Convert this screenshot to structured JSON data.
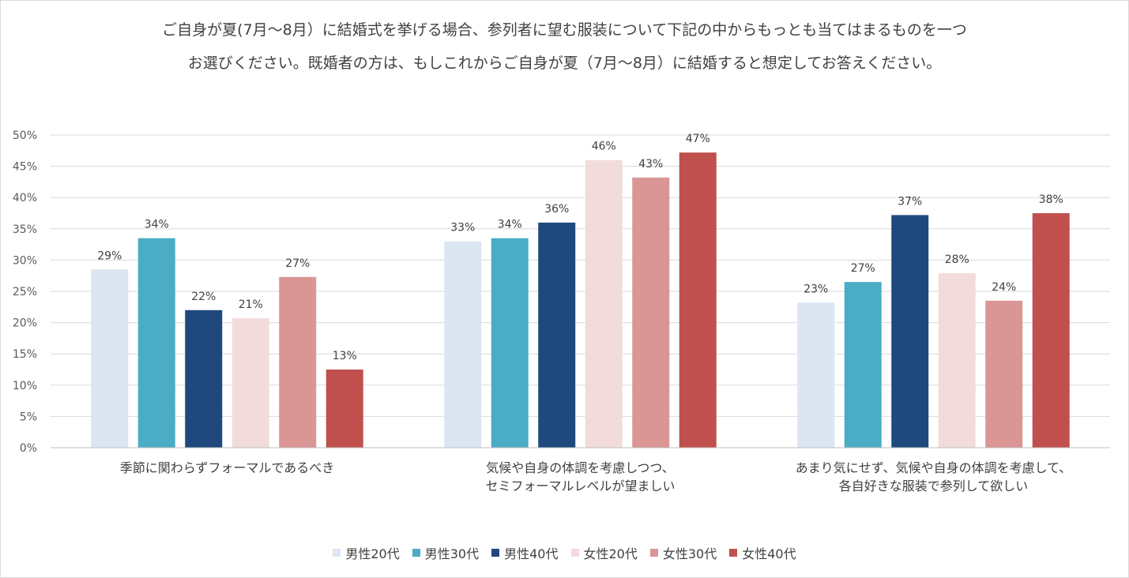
{
  "chart_data": {
    "type": "bar",
    "title": [
      "ご自身が夏(7月～8月）に結婚式を挙げる場合、参列者に望む服装について下記の中からもっとも当てはまるものを一つ",
      "お選びください。既婚者の方は、もしこれからご自身が夏（7月～8月）に結婚すると想定してお答えください。"
    ],
    "categories": [
      [
        "季節に関わらずフォーマルであるべき"
      ],
      [
        "気候や自身の体調を考慮しつつ、",
        "セミフォーマルレベルが望ましい"
      ],
      [
        "あまり気にせず、気候や自身の体調を考慮して、",
        "各自好きな服装で参列して欲しい"
      ]
    ],
    "series": [
      {
        "name": "男性20代",
        "color": "#dce6f2",
        "values": [
          28.5,
          33.0,
          23.2
        ],
        "labels": [
          "29%",
          "33%",
          "23%"
        ]
      },
      {
        "name": "男性30代",
        "color": "#4bacc6",
        "values": [
          33.5,
          33.5,
          26.5
        ],
        "labels": [
          "34%",
          "34%",
          "27%"
        ]
      },
      {
        "name": "男性40代",
        "color": "#1f497d",
        "values": [
          22.0,
          36.0,
          37.2
        ],
        "labels": [
          "22%",
          "36%",
          "37%"
        ]
      },
      {
        "name": "女性20代",
        "color": "#f2dcdb",
        "values": [
          20.7,
          46.0,
          27.9
        ],
        "labels": [
          "21%",
          "46%",
          "28%"
        ]
      },
      {
        "name": "女性30代",
        "color": "#d99694",
        "values": [
          27.3,
          43.2,
          23.5
        ],
        "labels": [
          "27%",
          "43%",
          "24%"
        ]
      },
      {
        "name": "女性40代",
        "color": "#c0504d",
        "values": [
          12.5,
          47.2,
          37.5
        ],
        "labels": [
          "13%",
          "47%",
          "38%"
        ]
      }
    ],
    "yticks": [
      "0%",
      "5%",
      "10%",
      "15%",
      "20%",
      "25%",
      "30%",
      "35%",
      "40%",
      "45%",
      "50%"
    ],
    "ylim": [
      0,
      50
    ],
    "grid": true,
    "legend_position": "bottom"
  }
}
